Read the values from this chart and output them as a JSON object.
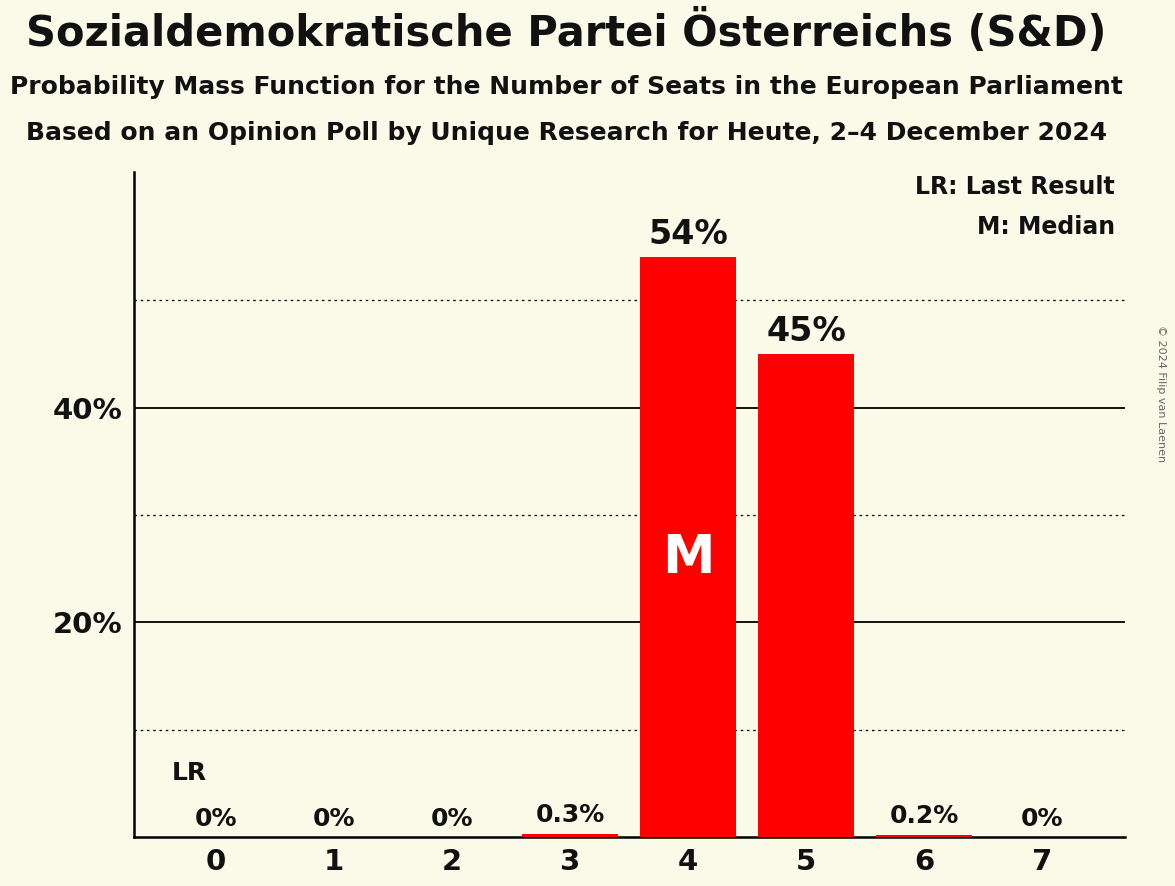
{
  "title": "Sozialdemokratische Partei Österreichs (S&D)",
  "subtitle1": "Probability Mass Function for the Number of Seats in the European Parliament",
  "subtitle2": "Based on an Opinion Poll by Unique Research for Heute, 2–4 December 2024",
  "copyright": "© 2024 Filip van Laenen",
  "categories": [
    0,
    1,
    2,
    3,
    4,
    5,
    6,
    7
  ],
  "values": [
    0.0,
    0.0,
    0.0,
    0.003,
    0.54,
    0.45,
    0.002,
    0.0
  ],
  "labels": [
    "0%",
    "0%",
    "0%",
    "0.3%",
    "54%",
    "45%",
    "0.2%",
    "0%"
  ],
  "bar_color": "#ff0000",
  "background_color": "#fafae8",
  "text_color": "#111111",
  "median_bar": 4,
  "lr_bar": 0,
  "legend_line1": "LR: Last Result",
  "legend_line2": "M: Median",
  "median_label": "M",
  "lr_label": "LR",
  "ylim": [
    0,
    0.62
  ],
  "solid_yticks": [
    0.2,
    0.4
  ],
  "dotted_yticks": [
    0.1,
    0.3,
    0.5
  ],
  "title_fontsize": 30,
  "subtitle_fontsize": 18,
  "label_fontsize": 18,
  "tick_fontsize": 21,
  "legend_fontsize": 17,
  "bar_label_fontsize_large": 24,
  "bar_label_fontsize_small": 18,
  "median_label_fontsize": 38
}
